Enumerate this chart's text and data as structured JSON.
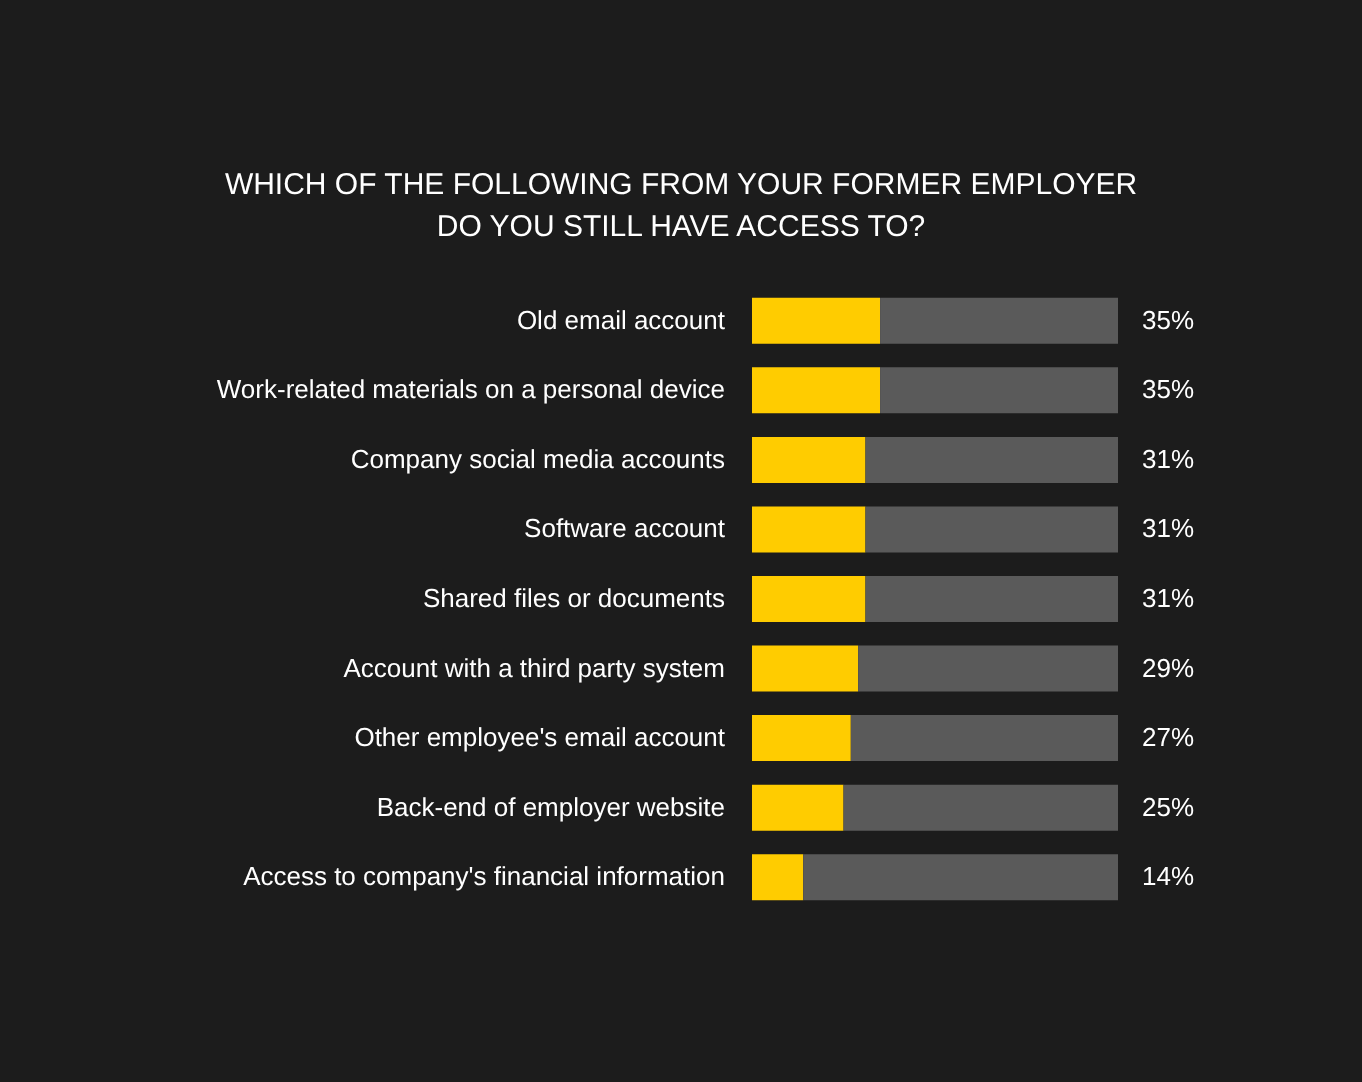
{
  "chart_data": {
    "type": "bar",
    "orientation": "horizontal",
    "stacked": true,
    "tick_labels": "y",
    "grid": false,
    "title": "WHICH OF THE FOLLOWING FROM YOUR FORMER EMPLOYER DO YOU STILL HAVE ACCESS TO?",
    "categories": [
      "Old email account",
      "Work-related materials on a personal device",
      "Company social media accounts",
      "Software account",
      "Shared files or documents",
      "Account with a third party system",
      "Other employee's email account",
      "Back-end of employer website",
      "Access to company's financial information"
    ],
    "series": [
      {
        "color": "#ffcc00",
        "values": [
          35,
          35,
          31,
          31,
          31,
          29,
          27,
          25,
          14
        ],
        "value_labels": [
          "35%",
          "35%",
          "31%",
          "31%",
          "31%",
          "29%",
          "27%",
          "25%",
          "14%"
        ]
      },
      {
        "color": "#5a5a5a",
        "values": [
          65,
          65,
          69,
          69,
          69,
          71,
          73,
          75,
          86
        ]
      }
    ]
  }
}
